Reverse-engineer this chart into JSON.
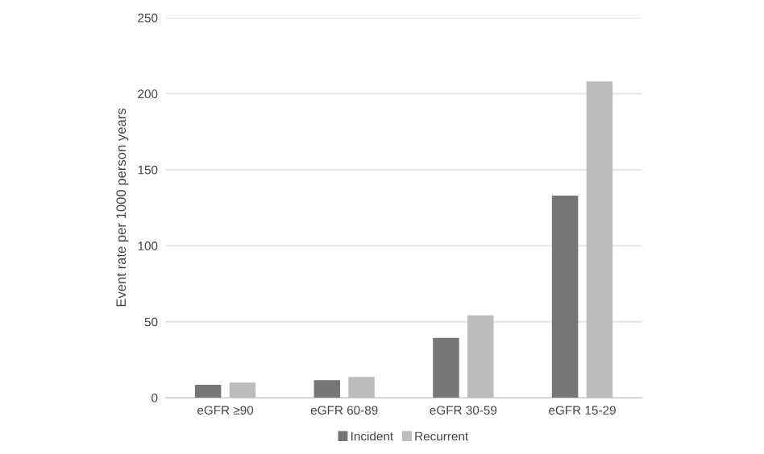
{
  "chart_data": {
    "type": "bar",
    "ylabel": "Event rate per 1000 person years",
    "categories": [
      "eGFR ≥90",
      "eGFR 60-89",
      "eGFR 30-59",
      "eGFR 15-29"
    ],
    "series": [
      {
        "name": "Incident",
        "color": "#767676",
        "values": [
          8.5,
          11.6,
          39.4,
          133
        ]
      },
      {
        "name": "Recurrent",
        "color": "#bcbcbc",
        "values": [
          9.9,
          13.7,
          54.2,
          208
        ]
      }
    ],
    "ylim": [
      0,
      250
    ],
    "yticks": [
      0,
      50,
      100,
      150,
      200,
      250
    ],
    "grid": "y",
    "legend": "bottom"
  }
}
